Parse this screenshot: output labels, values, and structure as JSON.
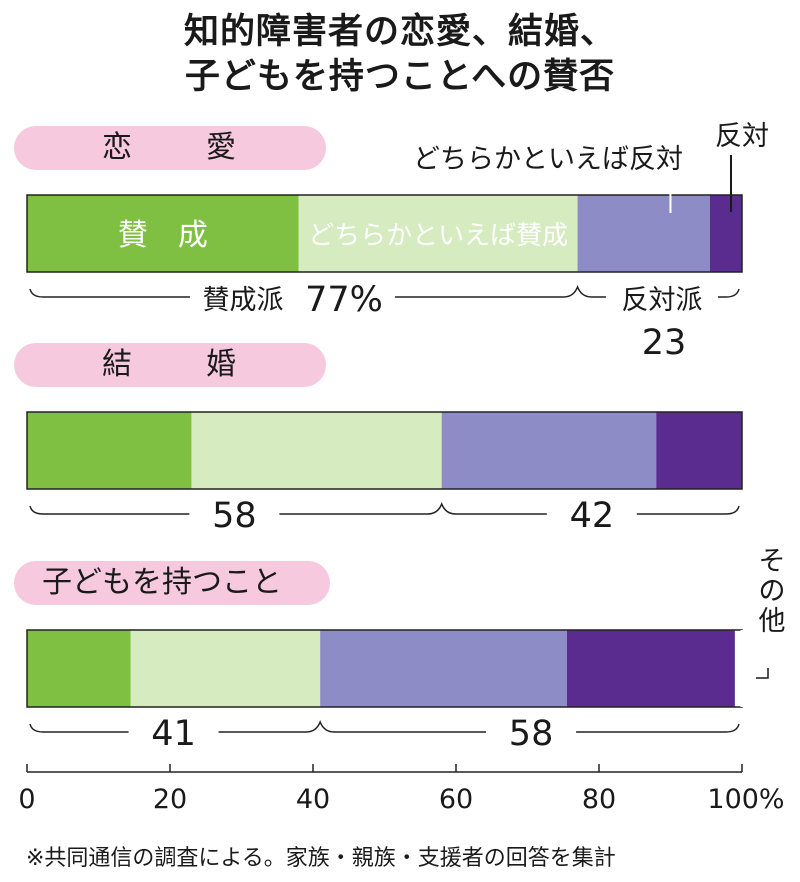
{
  "title": {
    "line1": "知的障害者の恋愛、結婚、",
    "line2": "子どもを持つことへの賛否"
  },
  "source_note": "※共同通信の調査による。家族・親族・支援者の回答を集計",
  "colors": {
    "agree": "#7fc043",
    "somewhat_agree": "#d6ebbf",
    "somewhat_oppose": "#8e8cc7",
    "oppose": "#5b2c8f",
    "pill": "#f6c9df"
  },
  "chart_data": {
    "type": "bar",
    "orientation": "horizontal",
    "stacked": true,
    "categories": [
      "恋　愛",
      "結　婚",
      "子どもを持つこと"
    ],
    "series": [
      {
        "name": "賛　成",
        "values": [
          38,
          23,
          14.5
        ]
      },
      {
        "name": "どちらかといえば賛成",
        "values": [
          39,
          35,
          26.5
        ]
      },
      {
        "name": "どちらかといえば反対",
        "values": [
          18.5,
          30,
          34.5
        ]
      },
      {
        "name": "反対",
        "values": [
          4.5,
          12,
          23.5
        ]
      }
    ],
    "other": [
      0,
      0,
      1
    ],
    "group_totals": [
      {
        "agree_label": "賛成派",
        "agree": "77%",
        "oppose_label": "反対派",
        "oppose": "23"
      },
      {
        "agree": "58",
        "oppose": "42"
      },
      {
        "agree": "41",
        "oppose": "58"
      }
    ],
    "annotations": {
      "somewhat_oppose": "どちらかといえば反対",
      "oppose": "反対",
      "other": "その他"
    },
    "xlim": [
      0,
      100
    ],
    "x_ticks": [
      "0",
      "20",
      "40",
      "60",
      "80",
      "100%"
    ]
  }
}
